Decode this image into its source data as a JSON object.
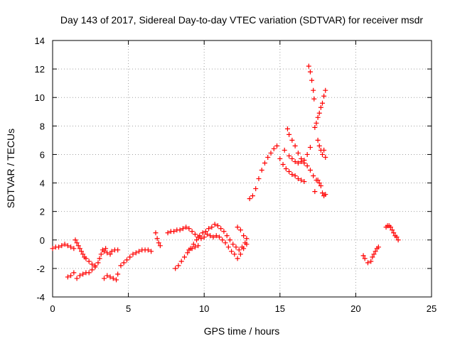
{
  "chart_data": {
    "type": "scatter",
    "title": "Day 143 of 2017, Sidereal Day-to-day VTEC variation (SDTVAR) for receiver msdr",
    "xlabel": "GPS time / hours",
    "ylabel": "SDTVAR / TECUs",
    "xlim": [
      0,
      25
    ],
    "ylim": [
      -4,
      14
    ],
    "xticks": [
      "0",
      "5",
      "10",
      "15",
      "20",
      "25"
    ],
    "yticks": [
      "-4",
      "-2",
      "0",
      "2",
      "4",
      "6",
      "8",
      "10",
      "12",
      "14"
    ],
    "grid": true,
    "marker": "plus",
    "color": "#ff0000",
    "series": [
      {
        "points": [
          [
            0.0,
            -0.6
          ],
          [
            0.2,
            -0.5
          ],
          [
            0.4,
            -0.5
          ],
          [
            0.6,
            -0.4
          ],
          [
            0.8,
            -0.3
          ],
          [
            1.0,
            -0.4
          ],
          [
            1.2,
            -0.5
          ],
          [
            1.4,
            -0.6
          ],
          [
            1.0,
            -2.6
          ],
          [
            1.2,
            -2.5
          ],
          [
            1.4,
            -2.3
          ],
          [
            1.6,
            -2.7
          ],
          [
            1.8,
            -2.5
          ],
          [
            2.0,
            -2.4
          ],
          [
            2.2,
            -2.3
          ],
          [
            2.4,
            -2.3
          ],
          [
            2.6,
            -2.1
          ],
          [
            2.8,
            -1.9
          ],
          [
            1.5,
            0.0
          ],
          [
            1.6,
            -0.2
          ],
          [
            1.7,
            -0.4
          ],
          [
            1.8,
            -0.6
          ],
          [
            1.9,
            -0.8
          ],
          [
            2.0,
            -1.0
          ],
          [
            2.1,
            -1.2
          ],
          [
            2.2,
            -1.3
          ],
          [
            2.4,
            -1.5
          ],
          [
            2.6,
            -1.7
          ],
          [
            2.8,
            -1.8
          ],
          [
            3.0,
            -1.6
          ],
          [
            3.1,
            -1.3
          ],
          [
            3.2,
            -1.0
          ],
          [
            3.3,
            -0.7
          ],
          [
            3.4,
            -0.8
          ],
          [
            3.5,
            -0.6
          ],
          [
            3.6,
            -0.9
          ],
          [
            3.8,
            -1.0
          ],
          [
            3.4,
            -2.7
          ],
          [
            3.6,
            -2.5
          ],
          [
            3.8,
            -2.6
          ],
          [
            4.0,
            -2.7
          ],
          [
            4.2,
            -2.8
          ],
          [
            4.3,
            -2.4
          ],
          [
            3.9,
            -0.8
          ],
          [
            4.1,
            -0.7
          ],
          [
            4.3,
            -0.7
          ],
          [
            4.5,
            -1.8
          ],
          [
            4.7,
            -1.6
          ],
          [
            4.9,
            -1.4
          ],
          [
            5.1,
            -1.2
          ],
          [
            5.3,
            -1.0
          ],
          [
            5.5,
            -0.9
          ],
          [
            5.7,
            -0.8
          ],
          [
            5.9,
            -0.7
          ],
          [
            6.1,
            -0.7
          ],
          [
            6.3,
            -0.7
          ],
          [
            6.5,
            -0.8
          ],
          [
            6.8,
            0.5
          ],
          [
            6.9,
            0.1
          ],
          [
            7.0,
            -0.2
          ],
          [
            7.1,
            -0.4
          ],
          [
            7.6,
            0.5
          ],
          [
            7.8,
            0.6
          ],
          [
            8.0,
            0.6
          ],
          [
            8.2,
            0.7
          ],
          [
            8.4,
            0.7
          ],
          [
            8.6,
            0.8
          ],
          [
            8.8,
            0.9
          ],
          [
            9.0,
            0.8
          ],
          [
            9.2,
            0.6
          ],
          [
            9.4,
            0.4
          ],
          [
            9.6,
            0.2
          ],
          [
            9.8,
            0.1
          ],
          [
            8.1,
            -2.0
          ],
          [
            8.3,
            -1.8
          ],
          [
            8.5,
            -1.5
          ],
          [
            8.7,
            -1.2
          ],
          [
            8.9,
            -0.9
          ],
          [
            9.1,
            -0.6
          ],
          [
            9.3,
            -0.3
          ],
          [
            9.5,
            0.0
          ],
          [
            9.7,
            0.3
          ],
          [
            9.9,
            0.5
          ],
          [
            10.1,
            0.6
          ],
          [
            10.3,
            0.8
          ],
          [
            10.5,
            0.9
          ],
          [
            10.7,
            1.1
          ],
          [
            10.9,
            1.0
          ],
          [
            11.1,
            0.8
          ],
          [
            11.3,
            0.6
          ],
          [
            11.5,
            0.3
          ],
          [
            11.7,
            0.0
          ],
          [
            11.9,
            -0.3
          ],
          [
            12.1,
            -0.5
          ],
          [
            12.3,
            -0.7
          ],
          [
            12.5,
            -0.5
          ],
          [
            12.7,
            -0.2
          ],
          [
            9.0,
            -0.7
          ],
          [
            9.2,
            -0.6
          ],
          [
            9.4,
            -0.5
          ],
          [
            9.6,
            -0.4
          ],
          [
            10.0,
            0.2
          ],
          [
            10.2,
            0.4
          ],
          [
            10.4,
            0.3
          ],
          [
            10.6,
            0.2
          ],
          [
            10.8,
            0.3
          ],
          [
            11.0,
            0.2
          ],
          [
            11.2,
            0.0
          ],
          [
            11.4,
            -0.2
          ],
          [
            11.6,
            -0.5
          ],
          [
            11.8,
            -0.8
          ],
          [
            12.0,
            -1.0
          ],
          [
            12.2,
            -1.3
          ],
          [
            12.4,
            -1.0
          ],
          [
            12.6,
            -0.6
          ],
          [
            12.8,
            -0.3
          ],
          [
            12.2,
            0.9
          ],
          [
            12.4,
            0.7
          ],
          [
            12.6,
            0.3
          ],
          [
            12.8,
            0.1
          ],
          [
            13.0,
            2.9
          ],
          [
            13.2,
            3.1
          ],
          [
            13.4,
            3.6
          ],
          [
            13.6,
            4.3
          ],
          [
            13.8,
            4.9
          ],
          [
            14.0,
            5.4
          ],
          [
            14.2,
            5.8
          ],
          [
            14.4,
            6.1
          ],
          [
            14.6,
            6.4
          ],
          [
            14.8,
            6.6
          ],
          [
            15.0,
            5.7
          ],
          [
            15.2,
            5.3
          ],
          [
            15.4,
            5.0
          ],
          [
            15.6,
            4.8
          ],
          [
            15.8,
            4.6
          ],
          [
            16.0,
            4.5
          ],
          [
            16.2,
            4.3
          ],
          [
            16.4,
            4.2
          ],
          [
            16.6,
            4.1
          ],
          [
            15.3,
            6.3
          ],
          [
            15.5,
            7.8
          ],
          [
            15.6,
            7.4
          ],
          [
            15.8,
            7.0
          ],
          [
            16.0,
            6.6
          ],
          [
            16.2,
            6.1
          ],
          [
            16.4,
            5.7
          ],
          [
            16.6,
            5.4
          ],
          [
            16.8,
            5.2
          ],
          [
            17.0,
            4.9
          ],
          [
            17.2,
            4.5
          ],
          [
            17.4,
            4.2
          ],
          [
            15.6,
            5.9
          ],
          [
            15.8,
            5.7
          ],
          [
            16.0,
            5.5
          ],
          [
            16.2,
            5.4
          ],
          [
            16.4,
            5.5
          ],
          [
            16.6,
            5.6
          ],
          [
            16.8,
            6.0
          ],
          [
            17.0,
            6.5
          ],
          [
            16.9,
            12.2
          ],
          [
            17.0,
            11.8
          ],
          [
            17.1,
            11.2
          ],
          [
            17.2,
            10.5
          ],
          [
            17.25,
            9.9
          ],
          [
            17.3,
            7.9
          ],
          [
            17.4,
            8.2
          ],
          [
            17.5,
            8.6
          ],
          [
            17.6,
            8.9
          ],
          [
            17.7,
            9.3
          ],
          [
            17.8,
            9.6
          ],
          [
            17.9,
            10.1
          ],
          [
            18.0,
            10.5
          ],
          [
            17.5,
            7.0
          ],
          [
            17.6,
            6.6
          ],
          [
            17.7,
            6.3
          ],
          [
            17.8,
            6.0
          ],
          [
            17.9,
            6.3
          ],
          [
            18.0,
            5.8
          ],
          [
            17.3,
            3.4
          ],
          [
            17.5,
            4.2
          ],
          [
            17.6,
            4.0
          ],
          [
            17.7,
            3.8
          ],
          [
            17.8,
            3.3
          ],
          [
            17.9,
            3.1
          ],
          [
            18.0,
            3.2
          ],
          [
            20.5,
            -1.1
          ],
          [
            20.6,
            -1.3
          ],
          [
            20.8,
            -1.6
          ],
          [
            21.0,
            -1.5
          ],
          [
            21.1,
            -1.2
          ],
          [
            21.2,
            -1.0
          ],
          [
            21.3,
            -0.8
          ],
          [
            21.4,
            -0.6
          ],
          [
            21.5,
            -0.5
          ],
          [
            22.0,
            0.9
          ],
          [
            22.1,
            1.0
          ],
          [
            22.2,
            1.0
          ],
          [
            22.3,
            0.9
          ],
          [
            22.4,
            0.7
          ],
          [
            22.5,
            0.5
          ],
          [
            22.6,
            0.3
          ],
          [
            22.7,
            0.2
          ],
          [
            22.8,
            0.0
          ]
        ]
      }
    ]
  }
}
